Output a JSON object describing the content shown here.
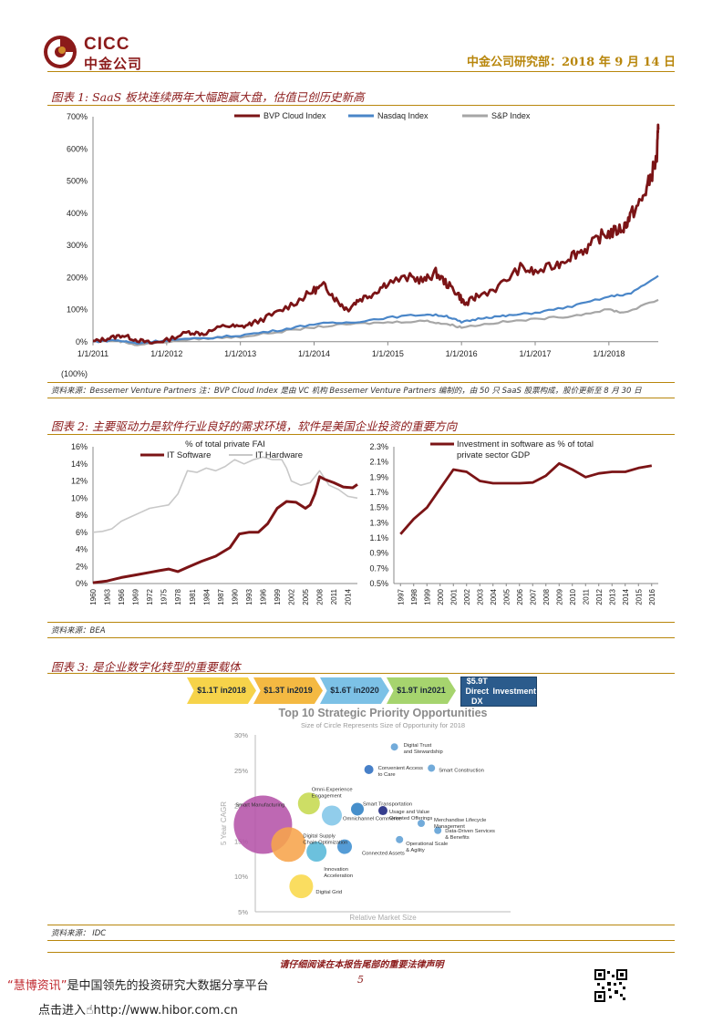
{
  "header": {
    "logo_en": "CICC",
    "logo_cn": "中金公司",
    "right_text": "中金公司研究部：2018 年 9 月 14 日"
  },
  "fig1": {
    "title": "图表 1:  SaaS 板块连续两年大幅跑赢大盘，估值已创历史新高",
    "source": "资料来源：Bessemer Venture Partners  注：BVP Cloud Index 是由 VC 机构 Bessemer Venture Partners 编制的，由 50 只 SaaS 股票构成，股价更新至 8 月 30 日"
  },
  "fig2": {
    "title": "图表 2:  主要驱动力是软件行业良好的需求环境，软件是美国企业投资的重要方向",
    "source": "资料来源：BEA"
  },
  "fig3": {
    "title": "图表 3:   是企业数字化转型的重要载体",
    "source": "资料来源：  IDC",
    "chevrons": [
      {
        "l1": "$1.1T in",
        "l2": "2018",
        "color": "#f6d34a"
      },
      {
        "l1": "$1.3T in",
        "l2": "2019",
        "color": "#f4b942"
      },
      {
        "l1": "$1.6T in",
        "l2": "2020",
        "color": "#7cc1e6"
      },
      {
        "l1": "$1.9T in",
        "l2": "2021",
        "color": "#a6d46e"
      }
    ],
    "box": {
      "l1": "$5.9T Direct DX",
      "l2": "Investment",
      "color": "#2b5b8c"
    }
  },
  "chart_data": [
    {
      "id": "fig1",
      "type": "line",
      "title": "",
      "x": [
        "1/1/2011",
        "1/1/2012",
        "1/1/2013",
        "1/1/2014",
        "1/1/2015",
        "1/1/2016",
        "1/1/2017",
        "1/1/2018"
      ],
      "x_years": [
        2011,
        2012,
        2013,
        2014,
        2015,
        2016,
        2017,
        2018
      ],
      "xlim": [
        2011,
        2018.67
      ],
      "ylim": [
        -100,
        700
      ],
      "yticks": [
        -100,
        0,
        100,
        200,
        300,
        400,
        500,
        600,
        700
      ],
      "ytick_labels": [
        "(100%)",
        "0%",
        "100%",
        "200%",
        "300%",
        "400%",
        "500%",
        "600%",
        "700%"
      ],
      "legend_position": "top",
      "series": [
        {
          "name": "BVP Cloud Index",
          "color": "#7b1416",
          "points": [
            [
              2011,
              0
            ],
            [
              2011.2,
              10
            ],
            [
              2011.4,
              20
            ],
            [
              2011.6,
              5
            ],
            [
              2011.8,
              -5
            ],
            [
              2012,
              5
            ],
            [
              2012.3,
              30
            ],
            [
              2012.5,
              25
            ],
            [
              2012.8,
              50
            ],
            [
              2013,
              45
            ],
            [
              2013.2,
              60
            ],
            [
              2013.5,
              90
            ],
            [
              2013.8,
              130
            ],
            [
              2014,
              160
            ],
            [
              2014.15,
              175
            ],
            [
              2014.3,
              130
            ],
            [
              2014.45,
              100
            ],
            [
              2014.6,
              130
            ],
            [
              2014.8,
              150
            ],
            [
              2015,
              185
            ],
            [
              2015.3,
              200
            ],
            [
              2015.5,
              190
            ],
            [
              2015.65,
              215
            ],
            [
              2015.8,
              180
            ],
            [
              2015.95,
              150
            ],
            [
              2016.05,
              115
            ],
            [
              2016.2,
              140
            ],
            [
              2016.5,
              170
            ],
            [
              2016.8,
              230
            ],
            [
              2017,
              215
            ],
            [
              2017.3,
              240
            ],
            [
              2017.5,
              270
            ],
            [
              2017.7,
              290
            ],
            [
              2017.9,
              330
            ],
            [
              2018.05,
              340
            ],
            [
              2018.2,
              355
            ],
            [
              2018.3,
              395
            ],
            [
              2018.45,
              440
            ],
            [
              2018.55,
              500
            ],
            [
              2018.65,
              570
            ],
            [
              2018.67,
              660
            ]
          ]
        },
        {
          "name": "Nasdaq Index",
          "color": "#4a86c8",
          "points": [
            [
              2011,
              0
            ],
            [
              2011.3,
              5
            ],
            [
              2011.6,
              -5
            ],
            [
              2012,
              5
            ],
            [
              2012.5,
              10
            ],
            [
              2013,
              20
            ],
            [
              2013.5,
              35
            ],
            [
              2014,
              55
            ],
            [
              2014.5,
              60
            ],
            [
              2015,
              75
            ],
            [
              2015.5,
              85
            ],
            [
              2015.8,
              80
            ],
            [
              2016,
              60
            ],
            [
              2016.3,
              75
            ],
            [
              2016.6,
              80
            ],
            [
              2017,
              90
            ],
            [
              2017.5,
              110
            ],
            [
              2018,
              140
            ],
            [
              2018.3,
              150
            ],
            [
              2018.67,
              205
            ]
          ]
        },
        {
          "name": "S&P Index",
          "color": "#a6a6a6",
          "points": [
            [
              2011,
              0
            ],
            [
              2011.3,
              5
            ],
            [
              2011.6,
              -10
            ],
            [
              2012,
              0
            ],
            [
              2012.5,
              10
            ],
            [
              2013,
              15
            ],
            [
              2013.5,
              30
            ],
            [
              2014,
              45
            ],
            [
              2014.5,
              55
            ],
            [
              2015,
              60
            ],
            [
              2015.5,
              65
            ],
            [
              2015.8,
              55
            ],
            [
              2016,
              45
            ],
            [
              2016.5,
              60
            ],
            [
              2017,
              70
            ],
            [
              2017.5,
              80
            ],
            [
              2018,
              100
            ],
            [
              2018.2,
              90
            ],
            [
              2018.67,
              130
            ]
          ]
        }
      ]
    },
    {
      "id": "fig2a",
      "type": "line",
      "title": "% of total private FAI",
      "x_years": [
        1960,
        1963,
        1966,
        1969,
        1972,
        1975,
        1978,
        1981,
        1984,
        1987,
        1990,
        1993,
        1996,
        1999,
        2002,
        2005,
        2008,
        2011,
        2014
      ],
      "xlim": [
        1960,
        2016
      ],
      "ylim": [
        0,
        16
      ],
      "yticks": [
        0,
        2,
        4,
        6,
        8,
        10,
        12,
        14,
        16
      ],
      "ytick_labels": [
        "0%",
        "2%",
        "4%",
        "6%",
        "8%",
        "10%",
        "12%",
        "14%",
        "16%"
      ],
      "series": [
        {
          "name": "IT Software",
          "color": "#7b1416",
          "points": [
            [
              1960,
              0.1
            ],
            [
              1963,
              0.3
            ],
            [
              1966,
              0.7
            ],
            [
              1969,
              1.0
            ],
            [
              1972,
              1.3
            ],
            [
              1974,
              1.5
            ],
            [
              1976,
              1.7
            ],
            [
              1978,
              1.4
            ],
            [
              1980,
              1.9
            ],
            [
              1983,
              2.6
            ],
            [
              1986,
              3.2
            ],
            [
              1989,
              4.2
            ],
            [
              1991,
              5.8
            ],
            [
              1993,
              6.0
            ],
            [
              1995,
              6.0
            ],
            [
              1997,
              7.0
            ],
            [
              1999,
              8.8
            ],
            [
              2001,
              9.6
            ],
            [
              2003,
              9.5
            ],
            [
              2005,
              8.8
            ],
            [
              2006,
              9.2
            ],
            [
              2007,
              10.5
            ],
            [
              2008,
              12.5
            ],
            [
              2009,
              12.2
            ],
            [
              2011,
              11.8
            ],
            [
              2013,
              11.3
            ],
            [
              2015,
              11.2
            ],
            [
              2016,
              11.6
            ]
          ]
        },
        {
          "name": "IT Hardware",
          "color": "#c8c8c8",
          "points": [
            [
              1960,
              6.0
            ],
            [
              1962,
              6.1
            ],
            [
              1964,
              6.4
            ],
            [
              1966,
              7.3
            ],
            [
              1968,
              7.8
            ],
            [
              1970,
              8.3
            ],
            [
              1972,
              8.8
            ],
            [
              1974,
              9.0
            ],
            [
              1976,
              9.2
            ],
            [
              1978,
              10.5
            ],
            [
              1980,
              13.2
            ],
            [
              1982,
              13.0
            ],
            [
              1984,
              13.5
            ],
            [
              1986,
              13.2
            ],
            [
              1988,
              13.7
            ],
            [
              1990,
              14.5
            ],
            [
              1992,
              14.0
            ],
            [
              1994,
              14.5
            ],
            [
              1996,
              14.8
            ],
            [
              1998,
              14.5
            ],
            [
              2000,
              14.5
            ],
            [
              2001,
              13.5
            ],
            [
              2002,
              12.0
            ],
            [
              2004,
              11.5
            ],
            [
              2006,
              11.8
            ],
            [
              2008,
              13.2
            ],
            [
              2010,
              11.5
            ],
            [
              2012,
              11.0
            ],
            [
              2014,
              10.2
            ],
            [
              2016,
              10.0
            ]
          ]
        }
      ]
    },
    {
      "id": "fig2b",
      "type": "line",
      "title": "Investment in software as % of total private sector GDP",
      "x_years": [
        1997,
        1998,
        1999,
        2000,
        2001,
        2002,
        2003,
        2004,
        2005,
        2006,
        2007,
        2008,
        2009,
        2010,
        2011,
        2012,
        2013,
        2014,
        2015,
        2016
      ],
      "xlim": [
        1997,
        2016
      ],
      "ylim": [
        0.5,
        2.3
      ],
      "yticks": [
        0.5,
        0.7,
        0.9,
        1.1,
        1.3,
        1.5,
        1.7,
        1.9,
        2.1,
        2.3
      ],
      "ytick_labels": [
        "0.5%",
        "0.7%",
        "0.9%",
        "1.1%",
        "1.3%",
        "1.5%",
        "1.7%",
        "1.9%",
        "2.1%",
        "2.3%"
      ],
      "series": [
        {
          "name": "Investment in software as % of total private sector GDP",
          "color": "#7b1416",
          "values": [
            1.15,
            1.35,
            1.5,
            1.75,
            2.0,
            1.97,
            1.85,
            1.82,
            1.82,
            1.82,
            1.83,
            1.92,
            2.08,
            2.0,
            1.9,
            1.95,
            1.97,
            1.97,
            2.02,
            2.05
          ]
        }
      ]
    },
    {
      "id": "fig3",
      "type": "scatter",
      "title": "Top 10 Strategic Priority Opportunities",
      "subtitle": "Size of Circle Represents Size of Opportunity for 2018",
      "xlabel": "Relative Market Size",
      "ylabel": "5 Year CAGR",
      "ylim": [
        5,
        30
      ],
      "yticks": [
        5,
        10,
        15,
        20,
        25,
        30
      ],
      "ytick_labels": [
        "5%",
        "10%",
        "15%",
        "20%",
        "25%",
        "30%"
      ],
      "xlim": [
        0,
        1
      ],
      "points": [
        {
          "label": "Smart Manufacturing",
          "x": 0.03,
          "y": 17.3,
          "size": 32,
          "color": "#b553a9"
        },
        {
          "label": "Digital Supply Chain Optimization",
          "x": 0.13,
          "y": 14.5,
          "size": 19,
          "color": "#f7a44b"
        },
        {
          "label": "Omni-Experience Engagement",
          "x": 0.21,
          "y": 20.3,
          "size": 12,
          "color": "#c6d950"
        },
        {
          "label": "Omnichannel Commerce",
          "x": 0.3,
          "y": 18.6,
          "size": 11,
          "color": "#82c6e8"
        },
        {
          "label": "Innovation Acceleration",
          "x": 0.24,
          "y": 13.5,
          "size": 11,
          "color": "#58b8d8"
        },
        {
          "label": "Connected Assets",
          "x": 0.35,
          "y": 14.2,
          "size": 8,
          "color": "#3e8ed0"
        },
        {
          "label": "Smart Transportation",
          "x": 0.4,
          "y": 19.5,
          "size": 7,
          "color": "#2c7fc4"
        },
        {
          "label": "Usage and Value Oriented Offerings",
          "x": 0.5,
          "y": 19.3,
          "size": 5,
          "color": "#1a237e"
        },
        {
          "label": "Convenient Access to Care",
          "x": 0.445,
          "y": 25.1,
          "size": 5,
          "color": "#2e6ec0"
        },
        {
          "label": "Digital Trust and Stewardship",
          "x": 0.545,
          "y": 28.3,
          "size": 4,
          "color": "#5e9fd5"
        },
        {
          "label": "Smart Construction",
          "x": 0.69,
          "y": 25.3,
          "size": 4,
          "color": "#5e9fd5"
        },
        {
          "label": "Merchandise Lifecycle Management",
          "x": 0.65,
          "y": 17.5,
          "size": 4,
          "color": "#5e9fd5"
        },
        {
          "label": "Data-Driven Services & Benefits",
          "x": 0.715,
          "y": 16.5,
          "size": 4,
          "color": "#5e9fd5"
        },
        {
          "label": "Operational Scale & Agility",
          "x": 0.565,
          "y": 15.2,
          "size": 4,
          "color": "#5e9fd5"
        },
        {
          "label": "Digital Grid",
          "x": 0.18,
          "y": 8.6,
          "size": 13,
          "color": "#f9d84a"
        }
      ]
    }
  ],
  "footer": {
    "disclaimer": "请仔细阅读在本报告尾部的重要法律声明",
    "page_number": "5",
    "promo_brand": "“慧博资讯”",
    "promo_text": "是中国领先的投资研究大数据分享平台",
    "link_label": "点击进入",
    "link_url": "http://www.hibor.com.cn"
  }
}
